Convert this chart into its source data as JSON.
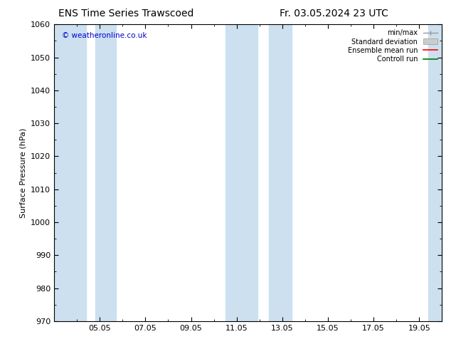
{
  "title_left": "ENS Time Series Trawscoed",
  "title_right": "Fr. 03.05.2024 23 UTC",
  "ylabel": "Surface Pressure (hPa)",
  "ylim": [
    970,
    1060
  ],
  "yticks": [
    970,
    980,
    990,
    1000,
    1010,
    1020,
    1030,
    1040,
    1050,
    1060
  ],
  "xtick_labels": [
    "05.05",
    "07.05",
    "09.05",
    "11.05",
    "13.05",
    "15.05",
    "17.05",
    "19.05"
  ],
  "blue_band_color": "#cce0f0",
  "copyright_text": "© weatheronline.co.uk",
  "copyright_color": "#0000cc",
  "legend_labels": [
    "min/max",
    "Standard deviation",
    "Ensemble mean run",
    "Controll run"
  ],
  "legend_colors_handle": [
    "#999999",
    "#bbbbbb",
    "#ff0000",
    "#007700"
  ],
  "background_color": "#ffffff",
  "title_fontsize": 10,
  "label_fontsize": 8,
  "tick_fontsize": 8
}
